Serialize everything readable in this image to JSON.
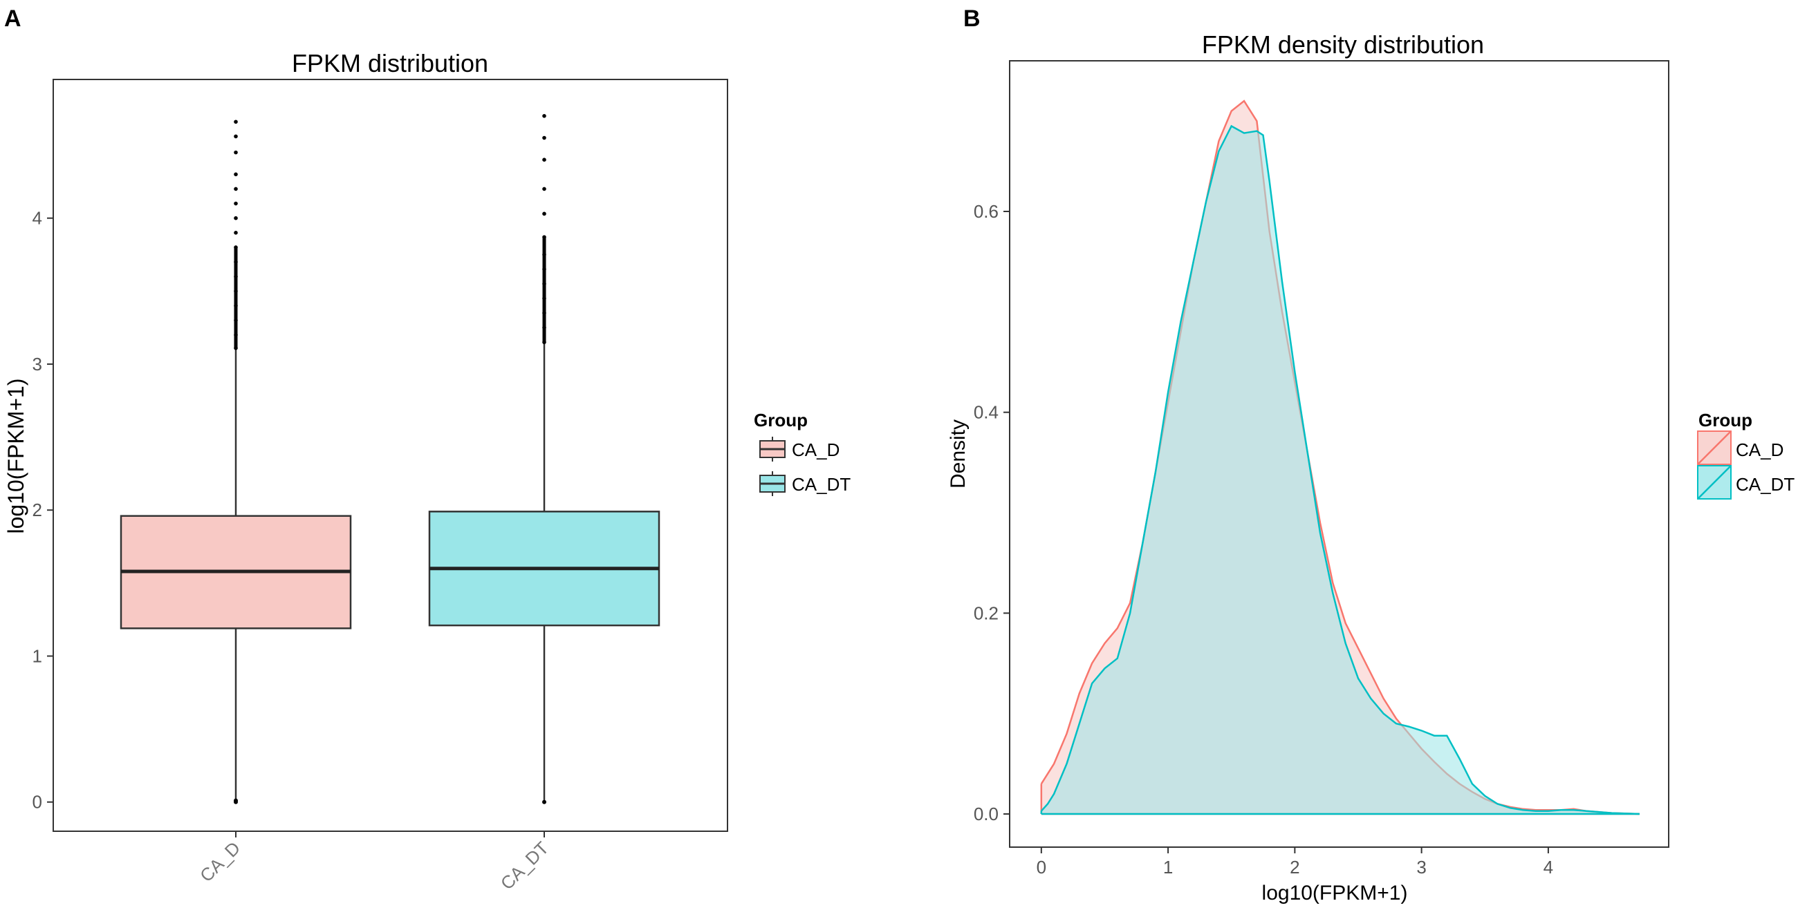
{
  "chart_data": [
    {
      "panel_label": "A",
      "type": "box",
      "title": "FPKM distribution",
      "xlabel": "",
      "ylabel": "log10(FPKM+1)",
      "ylim": [
        -0.2,
        4.95
      ],
      "yticks": [
        "0",
        "1",
        "2",
        "3",
        "4"
      ],
      "categories": [
        "CA_D",
        "CA_DT"
      ],
      "boxes": [
        {
          "name": "CA_D",
          "color": "#F8766D",
          "fill": "#F8C9C5",
          "q1": 1.19,
          "median": 1.58,
          "q3": 1.96,
          "whisker_low": 0.0,
          "whisker_high": 3.11,
          "outliers_high": [
            3.11,
            3.2,
            3.3,
            3.4,
            3.5,
            3.6,
            3.7,
            3.8,
            3.9,
            4.0,
            4.1,
            4.2,
            4.3,
            4.45,
            4.56,
            4.66
          ],
          "outliers_low": [
            0.0,
            0.01
          ]
        },
        {
          "name": "CA_DT",
          "color": "#00BFC4",
          "fill": "#9AE6E8",
          "q1": 1.21,
          "median": 1.6,
          "q3": 1.99,
          "whisker_low": 0.0,
          "whisker_high": 3.15,
          "outliers_high": [
            3.15,
            3.25,
            3.35,
            3.45,
            3.55,
            3.65,
            3.75,
            3.87,
            4.03,
            4.2,
            4.4,
            4.55,
            4.7
          ],
          "outliers_low": [
            0.0
          ]
        }
      ],
      "legend": {
        "title": "Group",
        "entries": [
          "CA_D",
          "CA_DT"
        ],
        "position": "right"
      }
    },
    {
      "panel_label": "B",
      "type": "area",
      "title": "FPKM density distribution",
      "xlabel": "log10(FPKM+1)",
      "ylabel": "Density",
      "xlim": [
        -0.25,
        4.95
      ],
      "ylim": [
        -0.033,
        0.75
      ],
      "xticks": [
        "0",
        "1",
        "2",
        "3",
        "4"
      ],
      "yticks": [
        "0.0",
        "0.2",
        "0.4",
        "0.6"
      ],
      "series": [
        {
          "name": "CA_D",
          "color": "#F8766D",
          "fill": "#F8C9C5",
          "points": [
            [
              0,
              0.03
            ],
            [
              0.1,
              0.05
            ],
            [
              0.2,
              0.08
            ],
            [
              0.3,
              0.12
            ],
            [
              0.4,
              0.15
            ],
            [
              0.5,
              0.17
            ],
            [
              0.6,
              0.185
            ],
            [
              0.7,
              0.21
            ],
            [
              0.8,
              0.27
            ],
            [
              0.9,
              0.34
            ],
            [
              1.0,
              0.41
            ],
            [
              1.1,
              0.48
            ],
            [
              1.2,
              0.55
            ],
            [
              1.3,
              0.61
            ],
            [
              1.4,
              0.67
            ],
            [
              1.5,
              0.7
            ],
            [
              1.6,
              0.71
            ],
            [
              1.7,
              0.69
            ],
            [
              1.8,
              0.58
            ],
            [
              1.9,
              0.5
            ],
            [
              2.0,
              0.43
            ],
            [
              2.1,
              0.36
            ],
            [
              2.2,
              0.29
            ],
            [
              2.3,
              0.23
            ],
            [
              2.4,
              0.19
            ],
            [
              2.5,
              0.165
            ],
            [
              2.6,
              0.14
            ],
            [
              2.7,
              0.115
            ],
            [
              2.8,
              0.095
            ],
            [
              2.9,
              0.08
            ],
            [
              3.0,
              0.065
            ],
            [
              3.1,
              0.052
            ],
            [
              3.2,
              0.04
            ],
            [
              3.3,
              0.03
            ],
            [
              3.4,
              0.022
            ],
            [
              3.5,
              0.015
            ],
            [
              3.6,
              0.01
            ],
            [
              3.7,
              0.007
            ],
            [
              3.8,
              0.005
            ],
            [
              3.9,
              0.004
            ],
            [
              4.0,
              0.004
            ],
            [
              4.1,
              0.004
            ],
            [
              4.2,
              0.005
            ],
            [
              4.3,
              0.003
            ],
            [
              4.5,
              0.001
            ],
            [
              4.72,
              0.0
            ]
          ]
        },
        {
          "name": "CA_DT",
          "color": "#00BFC4",
          "fill": "#9AE6E8",
          "points": [
            [
              0,
              0.003
            ],
            [
              0.05,
              0.01
            ],
            [
              0.1,
              0.02
            ],
            [
              0.2,
              0.05
            ],
            [
              0.3,
              0.09
            ],
            [
              0.4,
              0.13
            ],
            [
              0.5,
              0.145
            ],
            [
              0.6,
              0.155
            ],
            [
              0.7,
              0.2
            ],
            [
              0.8,
              0.27
            ],
            [
              0.9,
              0.34
            ],
            [
              1.0,
              0.42
            ],
            [
              1.1,
              0.49
            ],
            [
              1.2,
              0.55
            ],
            [
              1.3,
              0.61
            ],
            [
              1.4,
              0.66
            ],
            [
              1.5,
              0.685
            ],
            [
              1.6,
              0.678
            ],
            [
              1.7,
              0.68
            ],
            [
              1.75,
              0.676
            ],
            [
              1.8,
              0.63
            ],
            [
              1.9,
              0.53
            ],
            [
              2.0,
              0.44
            ],
            [
              2.1,
              0.36
            ],
            [
              2.2,
              0.28
            ],
            [
              2.3,
              0.22
            ],
            [
              2.4,
              0.17
            ],
            [
              2.5,
              0.135
            ],
            [
              2.6,
              0.115
            ],
            [
              2.7,
              0.1
            ],
            [
              2.8,
              0.09
            ],
            [
              2.9,
              0.087
            ],
            [
              3.0,
              0.083
            ],
            [
              3.1,
              0.078
            ],
            [
              3.2,
              0.078
            ],
            [
              3.3,
              0.055
            ],
            [
              3.4,
              0.03
            ],
            [
              3.5,
              0.018
            ],
            [
              3.6,
              0.01
            ],
            [
              3.7,
              0.006
            ],
            [
              3.8,
              0.004
            ],
            [
              3.9,
              0.003
            ],
            [
              4.0,
              0.003
            ],
            [
              4.1,
              0.004
            ],
            [
              4.2,
              0.004
            ],
            [
              4.3,
              0.003
            ],
            [
              4.5,
              0.001
            ],
            [
              4.72,
              0.0
            ]
          ]
        }
      ],
      "legend": {
        "title": "Group",
        "entries": [
          "CA_D",
          "CA_DT"
        ],
        "position": "right"
      }
    }
  ]
}
